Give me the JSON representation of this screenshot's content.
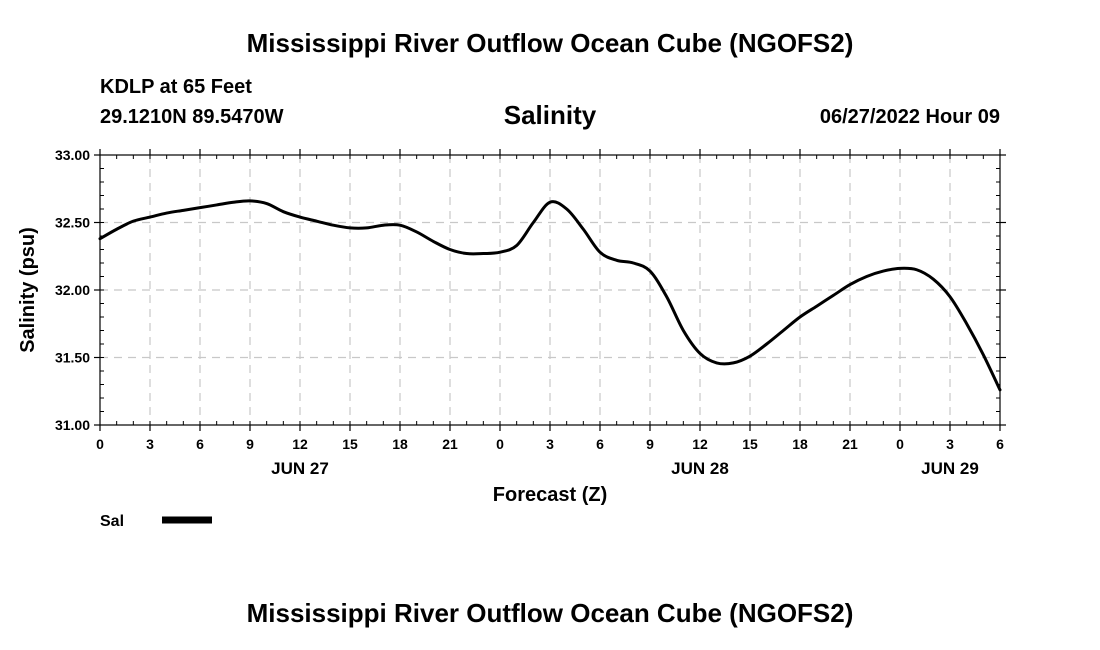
{
  "header": {
    "title": "Mississippi River Outflow Ocean Cube (NGOFS2)",
    "station": "KDLP at 65 Feet",
    "coordinates": "29.1210N  89.5470W",
    "variable": "Salinity",
    "datetime": "06/27/2022 Hour 09"
  },
  "footer": {
    "title": "Mississippi River Outflow Ocean Cube (NGOFS2)"
  },
  "chart_data": {
    "type": "line",
    "title": "Salinity",
    "xlabel": "Forecast (Z)",
    "ylabel": "Salinity (psu)",
    "xlim": [
      0,
      54
    ],
    "ylim": [
      31.0,
      33.0
    ],
    "grid": true,
    "x_tick_values": [
      0,
      3,
      6,
      9,
      12,
      15,
      18,
      21,
      24,
      27,
      30,
      33,
      36,
      39,
      42,
      45,
      48,
      51,
      54
    ],
    "x_tick_labels": [
      "0",
      "3",
      "6",
      "9",
      "12",
      "15",
      "18",
      "21",
      "0",
      "3",
      "6",
      "9",
      "12",
      "15",
      "18",
      "21",
      "0",
      "3",
      "6"
    ],
    "y_tick_values": [
      31.0,
      31.5,
      32.0,
      32.5,
      33.0
    ],
    "y_tick_labels": [
      "31.00",
      "31.50",
      "32.00",
      "32.50",
      "33.00"
    ],
    "date_labels": [
      {
        "x": 12,
        "label": "JUN 27"
      },
      {
        "x": 36,
        "label": "JUN 28"
      },
      {
        "x": 51,
        "label": "JUN 29"
      }
    ],
    "series": [
      {
        "name": "Sal",
        "color": "#000000",
        "x": [
          0,
          1,
          2,
          3,
          4,
          5,
          6,
          7,
          8,
          9,
          10,
          11,
          12,
          13,
          14,
          15,
          16,
          17,
          18,
          19,
          20,
          21,
          22,
          23,
          24,
          25,
          26,
          27,
          28,
          29,
          30,
          31,
          32,
          33,
          34,
          35,
          36,
          37,
          38,
          39,
          40,
          41,
          42,
          43,
          44,
          45,
          46,
          47,
          48,
          49,
          50,
          51,
          52,
          53,
          54
        ],
        "values": [
          32.38,
          32.45,
          32.51,
          32.54,
          32.57,
          32.59,
          32.61,
          32.63,
          32.65,
          32.66,
          32.64,
          32.58,
          32.54,
          32.51,
          32.48,
          32.46,
          32.46,
          32.48,
          32.48,
          32.43,
          32.36,
          32.3,
          32.27,
          32.27,
          32.28,
          32.33,
          32.5,
          32.65,
          32.6,
          32.45,
          32.28,
          32.22,
          32.2,
          32.14,
          31.95,
          31.7,
          31.53,
          31.46,
          31.46,
          31.51,
          31.6,
          31.7,
          31.8,
          31.88,
          31.96,
          32.04,
          32.1,
          32.14,
          32.16,
          32.15,
          32.08,
          31.95,
          31.75,
          31.52,
          31.26
        ]
      }
    ],
    "legend": [
      {
        "label": "Sal",
        "color": "#000000"
      }
    ]
  }
}
